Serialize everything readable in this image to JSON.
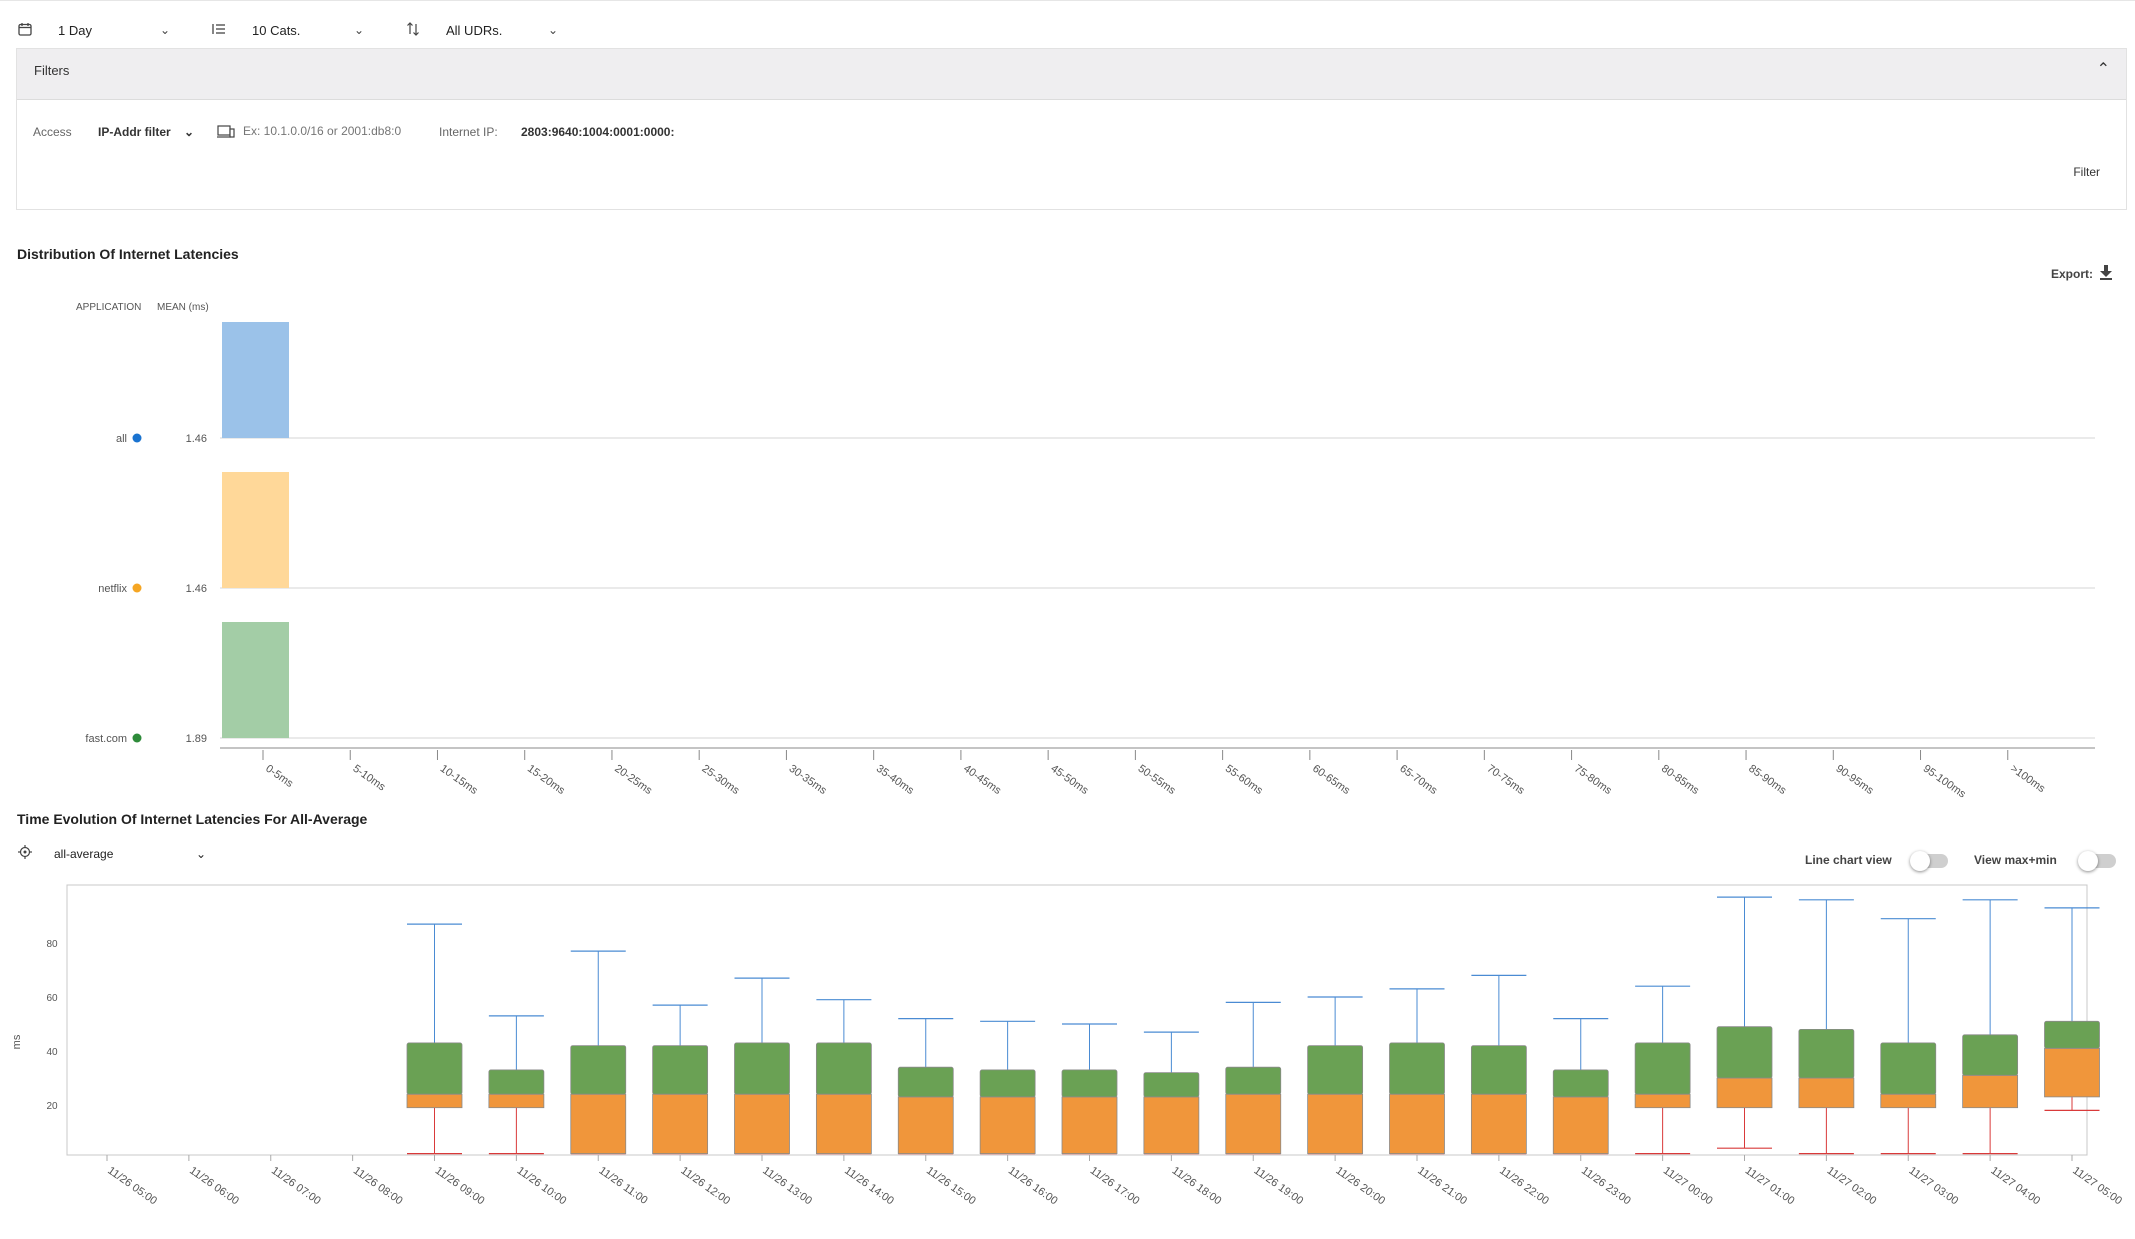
{
  "toolbar": {
    "period": "1 Day",
    "categories": "10 Cats.",
    "udrs": "All UDRs."
  },
  "filters": {
    "title": "Filters",
    "access_label": "Access",
    "ip_filter_select": "IP-Addr filter",
    "ip_placeholder": "Ex: 10.1.0.0/16 or 2001:db8:0",
    "internet_ip_label": "Internet IP:",
    "internet_ip_value": "2803:9640:1004:0001:0000:",
    "filter_button": "Filter"
  },
  "distribution": {
    "title": "Distribution Of Internet Latencies",
    "export_label": "Export:",
    "col_application": "APPLICATION",
    "col_mean": "MEAN (ms)"
  },
  "evolution": {
    "title": "Time Evolution Of Internet Latencies For All-Average",
    "selector_value": "all-average",
    "line_chart_label": "Line chart view",
    "view_maxmin_label": "View max+min"
  },
  "colors": {
    "all": "#9bc2e9",
    "netflix": "#ffd899",
    "fastcom": "#a3cda6",
    "all_dot": "#1a73d0",
    "netflix_dot": "#f5a623",
    "fastcom_dot": "#2e8b3a",
    "box_upper": "#6aa154",
    "box_lower": "#f0963b",
    "whisker_max": "#4a8bd3",
    "whisker_min": "#d93a3a"
  },
  "chart_data": [
    {
      "type": "bar",
      "categories": [
        "0-5ms",
        "5-10ms",
        "10-15ms",
        "15-20ms",
        "20-25ms",
        "25-30ms",
        "30-35ms",
        "35-40ms",
        "40-45ms",
        "45-50ms",
        "50-55ms",
        "55-60ms",
        "60-65ms",
        "65-70ms",
        "70-75ms",
        "75-80ms",
        "80-85ms",
        "85-90ms",
        "90-95ms",
        "95-100ms",
        ">100ms"
      ],
      "series": [
        {
          "name": "all",
          "mean": "1.46",
          "values": [
            100,
            0,
            0,
            0,
            0,
            0,
            0,
            0,
            0,
            0,
            0,
            0,
            0,
            0,
            0,
            0,
            0,
            0,
            0,
            0,
            0
          ]
        },
        {
          "name": "netflix",
          "mean": "1.46",
          "values": [
            100,
            0,
            0,
            0,
            0,
            0,
            0,
            0,
            0,
            0,
            0,
            0,
            0,
            0,
            0,
            0,
            0,
            0,
            0,
            0,
            0
          ]
        },
        {
          "name": "fast.com",
          "mean": "1.89",
          "values": [
            100,
            0,
            0,
            0,
            0,
            0,
            0,
            0,
            0,
            0,
            0,
            0,
            0,
            0,
            0,
            0,
            0,
            0,
            0,
            0,
            0
          ]
        }
      ]
    },
    {
      "type": "box",
      "ylabel": "ms",
      "ylim": [
        0,
        100
      ],
      "yticks": [
        20,
        40,
        60,
        80
      ],
      "x": [
        "11/26 05:00",
        "11/26 06:00",
        "11/26 07:00",
        "11/26 08:00",
        "11/26 09:00",
        "11/26 10:00",
        "11/26 11:00",
        "11/26 12:00",
        "11/26 13:00",
        "11/26 14:00",
        "11/26 15:00",
        "11/26 16:00",
        "11/26 17:00",
        "11/26 18:00",
        "11/26 19:00",
        "11/26 20:00",
        "11/26 21:00",
        "11/26 22:00",
        "11/26 23:00",
        "11/27 00:00",
        "11/27 01:00",
        "11/27 02:00",
        "11/27 03:00",
        "11/27 04:00",
        "11/27 05:00"
      ],
      "boxes": [
        null,
        null,
        null,
        null,
        {
          "min": 2,
          "q1": 19,
          "median": 24,
          "q3": 43,
          "max": 87
        },
        {
          "min": 2,
          "q1": 19,
          "median": 24,
          "q3": 33,
          "max": 53
        },
        {
          "min": 2,
          "q1": 2,
          "median": 24,
          "q3": 42,
          "max": 77
        },
        {
          "min": 2,
          "q1": 2,
          "median": 24,
          "q3": 42,
          "max": 57
        },
        {
          "min": 2,
          "q1": 2,
          "median": 24,
          "q3": 43,
          "max": 67
        },
        {
          "min": 2,
          "q1": 2,
          "median": 24,
          "q3": 43,
          "max": 59
        },
        {
          "min": 2,
          "q1": 2,
          "median": 23,
          "q3": 34,
          "max": 52
        },
        {
          "min": 2,
          "q1": 2,
          "median": 23,
          "q3": 33,
          "max": 51
        },
        {
          "min": 2,
          "q1": 2,
          "median": 23,
          "q3": 33,
          "max": 50
        },
        {
          "min": 2,
          "q1": 2,
          "median": 23,
          "q3": 32,
          "max": 47
        },
        {
          "min": 2,
          "q1": 2,
          "median": 24,
          "q3": 34,
          "max": 58
        },
        {
          "min": 2,
          "q1": 2,
          "median": 24,
          "q3": 42,
          "max": 60
        },
        {
          "min": 2,
          "q1": 2,
          "median": 24,
          "q3": 43,
          "max": 63
        },
        {
          "min": 2,
          "q1": 2,
          "median": 24,
          "q3": 42,
          "max": 68
        },
        {
          "min": 2,
          "q1": 2,
          "median": 23,
          "q3": 33,
          "max": 52
        },
        {
          "min": 2,
          "q1": 19,
          "median": 24,
          "q3": 43,
          "max": 64
        },
        {
          "min": 4,
          "q1": 19,
          "median": 30,
          "q3": 49,
          "max": 97
        },
        {
          "min": 2,
          "q1": 19,
          "median": 30,
          "q3": 48,
          "max": 96
        },
        {
          "min": 2,
          "q1": 19,
          "median": 24,
          "q3": 43,
          "max": 89
        },
        {
          "min": 2,
          "q1": 19,
          "median": 31,
          "q3": 46,
          "max": 96
        },
        {
          "min": 18,
          "q1": 23,
          "median": 41,
          "q3": 51,
          "max": 93
        }
      ]
    }
  ]
}
